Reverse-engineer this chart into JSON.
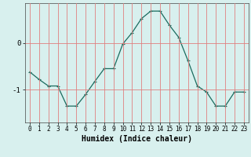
{
  "x": [
    0,
    1,
    2,
    3,
    4,
    5,
    6,
    7,
    8,
    9,
    10,
    11,
    12,
    13,
    14,
    15,
    16,
    17,
    18,
    19,
    20,
    21,
    22,
    23
  ],
  "y": [
    -0.62,
    -0.78,
    -0.92,
    -0.92,
    -1.35,
    -1.35,
    -1.1,
    -0.82,
    -0.55,
    -0.55,
    -0.02,
    0.22,
    0.52,
    0.68,
    0.68,
    0.38,
    0.12,
    -0.38,
    -0.92,
    -1.05,
    -1.35,
    -1.35,
    -1.05,
    -1.05
  ],
  "line_color": "#1a6b5e",
  "marker": "+",
  "marker_size": 3,
  "marker_linewidth": 0.8,
  "bg_color": "#d8f0ee",
  "grid_color": "#e08080",
  "xlabel": "Humidex (Indice chaleur)",
  "xlabel_fontsize": 7,
  "yticks": [
    0,
    -1
  ],
  "ylim": [
    -1.7,
    0.85
  ],
  "xlim": [
    -0.5,
    23.5
  ],
  "xticks": [
    0,
    1,
    2,
    3,
    4,
    5,
    6,
    7,
    8,
    9,
    10,
    11,
    12,
    13,
    14,
    15,
    16,
    17,
    18,
    19,
    20,
    21,
    22,
    23
  ],
  "tick_fontsize": 5.5,
  "ytick_fontsize": 6.5,
  "linewidth": 0.9
}
